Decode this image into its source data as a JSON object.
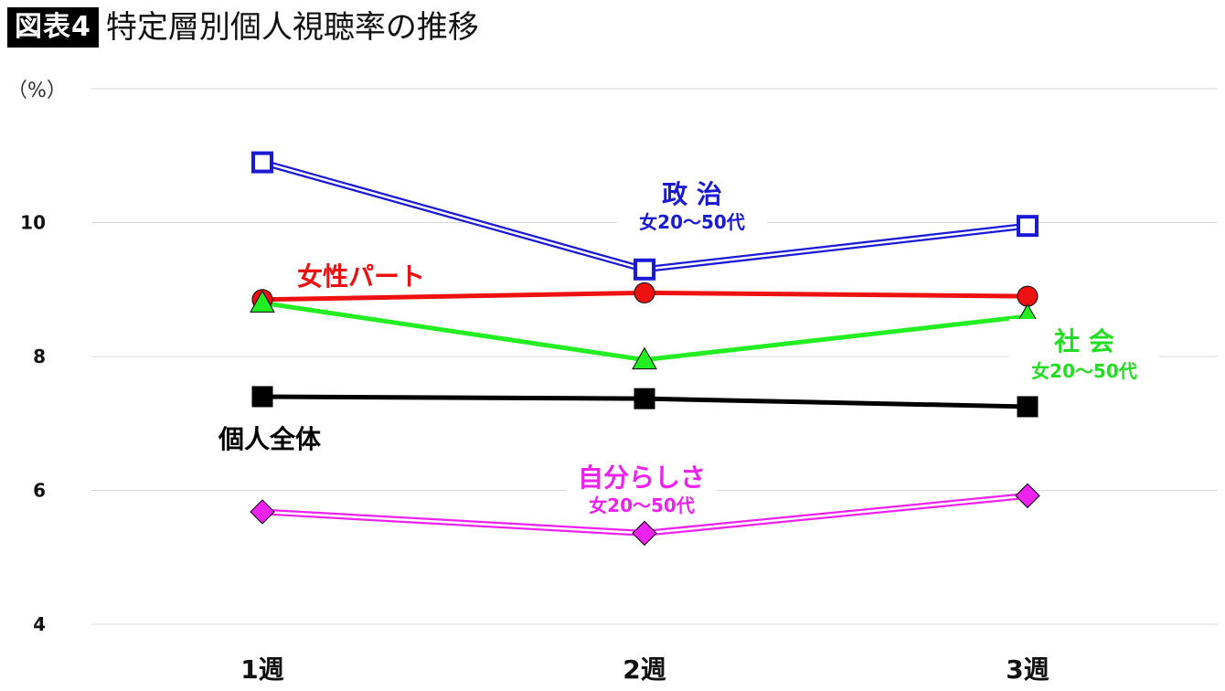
{
  "header": {
    "badge": "図表4",
    "title": "特定層別個人視聴率の推移"
  },
  "chart_data": {
    "type": "line",
    "categories": [
      "1週",
      "2週",
      "3週"
    ],
    "ylabel": "（%）",
    "ylim": [
      4,
      12
    ],
    "yticks": [
      4,
      6,
      8,
      10
    ],
    "grid": true,
    "series": [
      {
        "name": "政 治",
        "sublabel": "女20～50代",
        "values": [
          10.9,
          9.3,
          9.95
        ],
        "color": "#1a1ad6",
        "marker": "open-square",
        "line": "double",
        "label_color": "#1a1ad6"
      },
      {
        "name": "女性パート",
        "sublabel": "",
        "values": [
          8.85,
          8.95,
          8.9
        ],
        "color": "#ee1111",
        "marker": "circle",
        "line": "solid",
        "label_color": "#ee1111"
      },
      {
        "name": "社 会",
        "sublabel": "女20～50代",
        "values": [
          8.8,
          7.95,
          8.6
        ],
        "color": "#22ee22",
        "marker": "triangle",
        "line": "solid",
        "label_color": "#22dd22"
      },
      {
        "name": "個人全体",
        "sublabel": "",
        "values": [
          7.4,
          7.37,
          7.25
        ],
        "color": "#000000",
        "marker": "filled-square",
        "line": "solid",
        "label_color": "#000000"
      },
      {
        "name": "自分らしさ",
        "sublabel": "女20～50代",
        "values": [
          5.68,
          5.36,
          5.92
        ],
        "color": "#ee22ee",
        "marker": "diamond",
        "line": "double",
        "label_color": "#ee22ee"
      }
    ]
  }
}
